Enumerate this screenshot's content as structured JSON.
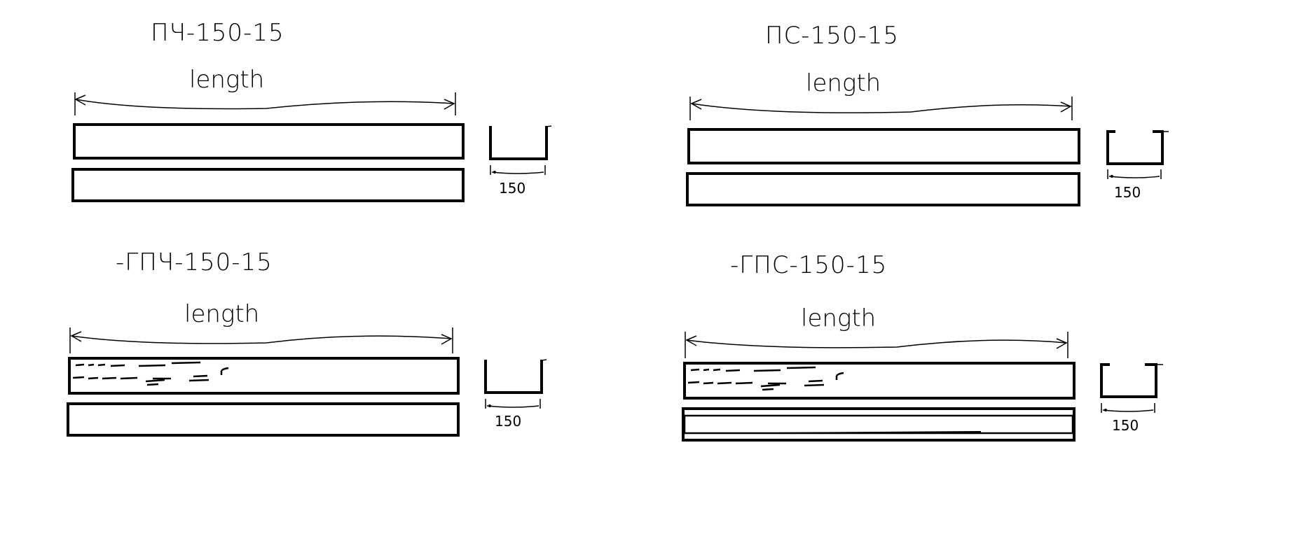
{
  "diagram": {
    "panels": [
      {
        "id": "panel-1",
        "title": "ПЧ-150-15",
        "length_label": "length",
        "width_label": "150",
        "profile": "u-channel",
        "textured": false,
        "double_line_lower": false
      },
      {
        "id": "panel-2",
        "title": "ПС-150-15",
        "length_label": "length",
        "width_label": "150",
        "profile": "c-channel",
        "textured": false,
        "double_line_lower": false
      },
      {
        "id": "panel-3",
        "title": "-ГПЧ-150-15",
        "length_label": "length",
        "width_label": "150",
        "profile": "u-channel",
        "textured": true,
        "double_line_lower": false
      },
      {
        "id": "panel-4",
        "title": "-ГПС-150-15",
        "length_label": "length",
        "width_label": "150",
        "profile": "c-channel",
        "textured": true,
        "double_line_lower": true
      }
    ]
  }
}
